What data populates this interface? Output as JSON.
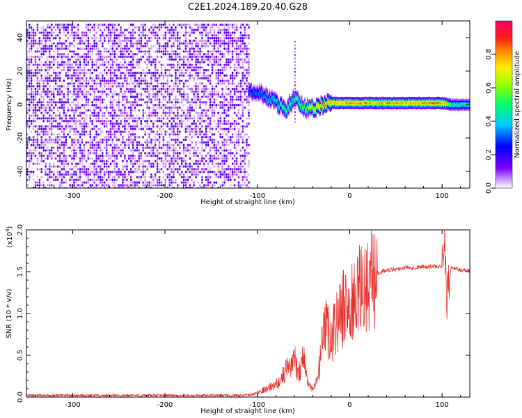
{
  "title": "C2E1.2024.189.20.40.G28",
  "chart_data": [
    {
      "type": "heatmap",
      "xlabel": "Height of straight line (km)",
      "ylabel": "Frequency (Hz)",
      "xlim": [
        -350,
        130
      ],
      "ylim": [
        -50,
        50
      ],
      "xticks": [
        -300,
        -200,
        -100,
        0,
        100
      ],
      "yticks": [
        -40,
        -20,
        0,
        20,
        40
      ],
      "colorbar": {
        "label": "Normalized spectral amplitude",
        "range": [
          0,
          1
        ],
        "ticks": [
          "0.0",
          "0.2",
          "0.4",
          "0.6",
          "0.8"
        ],
        "colormap": "rainbow (purple-blue-cyan-green-yellow-orange-red-magenta)"
      },
      "noise_region": {
        "x": [
          -350,
          -110
        ],
        "y": [
          -50,
          48
        ],
        "typical_amplitude": 0.1
      },
      "signal_track": [
        {
          "x": -110,
          "y": 8,
          "amplitude": 0.3
        },
        {
          "x": -100,
          "y": 8,
          "amplitude": 0.35
        },
        {
          "x": -90,
          "y": 5,
          "amplitude": 0.4
        },
        {
          "x": -80,
          "y": 1,
          "amplitude": 0.45
        },
        {
          "x": -70,
          "y": -3,
          "amplitude": 0.55
        },
        {
          "x": -60,
          "y": 4,
          "amplitude": 0.5
        },
        {
          "x": -50,
          "y": -2,
          "amplitude": 0.6
        },
        {
          "x": -40,
          "y": -2,
          "amplitude": 0.7
        },
        {
          "x": -30,
          "y": 0,
          "amplitude": 0.85
        },
        {
          "x": -20,
          "y": 1,
          "amplitude": 0.8
        },
        {
          "x": 0,
          "y": 1,
          "amplitude": 0.85
        },
        {
          "x": 25,
          "y": 1,
          "amplitude": 0.8
        },
        {
          "x": 50,
          "y": 1,
          "amplitude": 0.82
        },
        {
          "x": 75,
          "y": 1,
          "amplitude": 0.82
        },
        {
          "x": 100,
          "y": 1,
          "amplitude": 0.85
        },
        {
          "x": 110,
          "y": 0,
          "amplitude": 0.5
        },
        {
          "x": 130,
          "y": 0,
          "amplitude": 0.45
        }
      ]
    },
    {
      "type": "line",
      "xlabel": "Height of straight line (km)",
      "ylabel": "SNR (10 * v/v)",
      "multiplier": "(x10",
      "multiplier_exp": "4",
      "multiplier_close": ")",
      "xlim": [
        -350,
        130
      ],
      "ylim": [
        0,
        2
      ],
      "xticks": [
        -300,
        -200,
        -100,
        0,
        100
      ],
      "yticks": [
        "0.0",
        "0.5",
        "1.0",
        "1.5",
        "2.0"
      ],
      "color": "#e8302a",
      "series": [
        {
          "x": [
            -350,
            -300,
            -250,
            -200,
            -150,
            -120,
            -105,
            -95,
            -90,
            -80,
            -75,
            -70,
            -60,
            -55,
            -50,
            -45,
            -40,
            -35,
            -30,
            -25,
            -20,
            -15,
            -10,
            -5,
            0,
            5,
            10,
            15,
            20,
            25,
            30,
            35,
            40,
            50,
            60,
            70,
            80,
            90,
            100,
            103,
            105,
            110,
            120,
            130
          ],
          "y": [
            0.02,
            0.02,
            0.02,
            0.02,
            0.02,
            0.02,
            0.03,
            0.08,
            0.1,
            0.15,
            0.2,
            0.3,
            0.45,
            0.3,
            0.5,
            0.15,
            0.08,
            0.2,
            0.6,
            0.85,
            0.7,
            0.9,
            1.0,
            1.1,
            1.05,
            1.15,
            1.25,
            1.3,
            1.35,
            1.4,
            1.48,
            1.5,
            1.52,
            1.53,
            1.55,
            1.55,
            1.56,
            1.56,
            1.57,
            1.85,
            1.2,
            1.55,
            1.52,
            1.52
          ]
        }
      ]
    }
  ]
}
